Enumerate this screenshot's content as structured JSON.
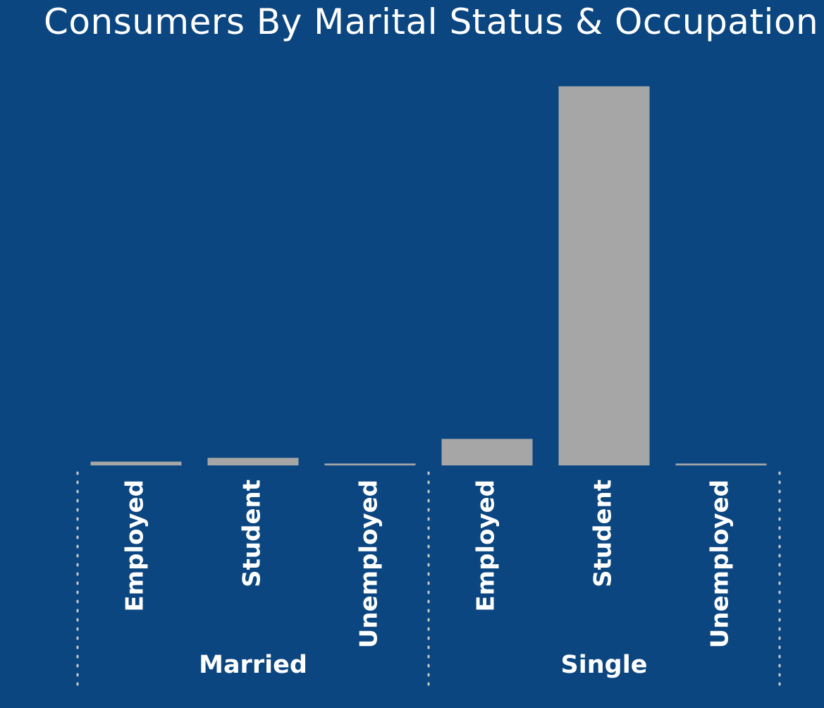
{
  "chart_data": {
    "type": "bar",
    "title": "Consumers By Marital Status & Occupation",
    "xlabel": "",
    "ylabel": "",
    "grid": false,
    "legend": "none",
    "ylim": [
      0,
      101
    ],
    "categories": [
      "Employed",
      "Student",
      "Unemployed",
      "Employed",
      "Student",
      "Unemployed"
    ],
    "groups": [
      {
        "name": "Married",
        "categories": [
          "Employed",
          "Student",
          "Unemployed"
        ],
        "values": [
          1.0,
          2.0,
          0.5
        ]
      },
      {
        "name": "Single",
        "categories": [
          "Employed",
          "Student",
          "Unemployed"
        ],
        "values": [
          7.0,
          100.0,
          0.5
        ]
      }
    ],
    "colors": {
      "background": "#0b4680",
      "bar": "#a6a6a6",
      "text": "#ffffff",
      "separator": "#c8c8c8"
    }
  }
}
